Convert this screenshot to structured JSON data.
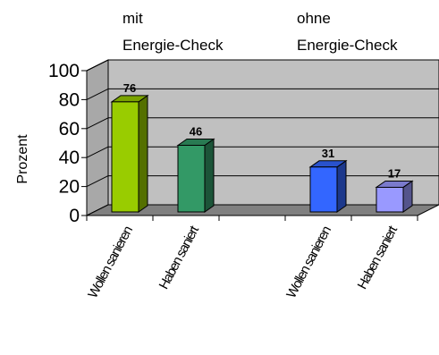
{
  "chart_data": {
    "type": "bar",
    "style": "3d-column",
    "ylabel": "Prozent",
    "ylim": [
      0,
      100
    ],
    "yticks": [
      0,
      20,
      40,
      60,
      80,
      100
    ],
    "grid": true,
    "group_labels": [
      {
        "line1": "mit",
        "line2": "Energie-Check"
      },
      {
        "line1": "ohne",
        "line2": "Energie-Check"
      }
    ],
    "categories": [
      "Wollen sanieren",
      "Haben saniert",
      "",
      "Wollen sanieren",
      "Haben saniert"
    ],
    "values": [
      76,
      46,
      null,
      31,
      17
    ],
    "colors": [
      "#99CC00",
      "#339966",
      null,
      "#3366FF",
      "#9999FF"
    ],
    "background_color": "#C0C0C0",
    "floor_color": "#808080"
  }
}
